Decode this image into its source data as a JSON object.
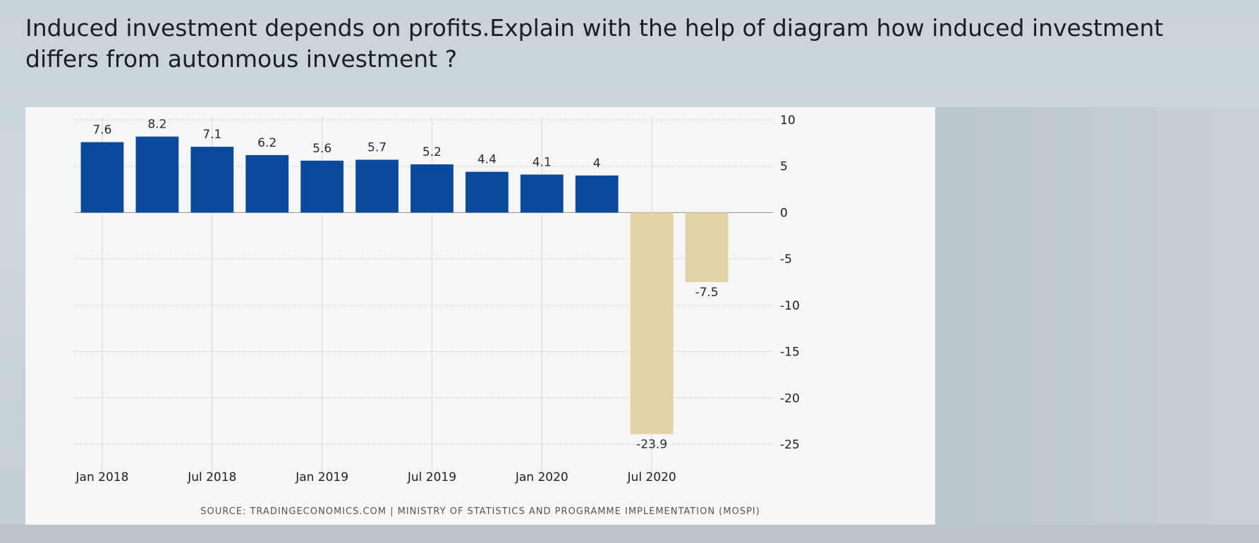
{
  "question": {
    "text": "Induced investment depends on profits.Explain with the help of diagram how induced investment differs from autonmous investment ?"
  },
  "chart_data": {
    "type": "bar",
    "categories": [
      "",
      "",
      "",
      "",
      "",
      "",
      "",
      "",
      "",
      "",
      "",
      ""
    ],
    "values": [
      7.6,
      8.2,
      7.1,
      6.2,
      5.6,
      5.7,
      5.2,
      4.4,
      4.1,
      4,
      -23.9,
      -7.5
    ],
    "value_labels": [
      "7.6",
      "8.2",
      "7.1",
      "6.2",
      "5.6",
      "5.7",
      "5.2",
      "4.4",
      "4.1",
      "4",
      "-23.9",
      "-7.5"
    ],
    "x_tick_labels": [
      "Jan 2018",
      "Jul 2018",
      "Jan 2019",
      "Jul 2019",
      "Jan 2020",
      "Jul 2020"
    ],
    "y_ticks": [
      10,
      5,
      0,
      -5,
      -10,
      -15,
      -20,
      -25
    ],
    "y_tick_labels": [
      "10",
      "5",
      "0",
      "-5",
      "-10",
      "-15",
      "-20",
      "-25"
    ],
    "ylim": [
      -25,
      10
    ],
    "y_axis_side": "right",
    "grid": true,
    "colors": {
      "positive": "#0a4a9c",
      "negative": "#e4d3a6"
    },
    "source": "SOURCE: TRADINGECONOMICS.COM | MINISTRY OF STATISTICS AND PROGRAMME IMPLEMENTATION (MOSPI)"
  }
}
